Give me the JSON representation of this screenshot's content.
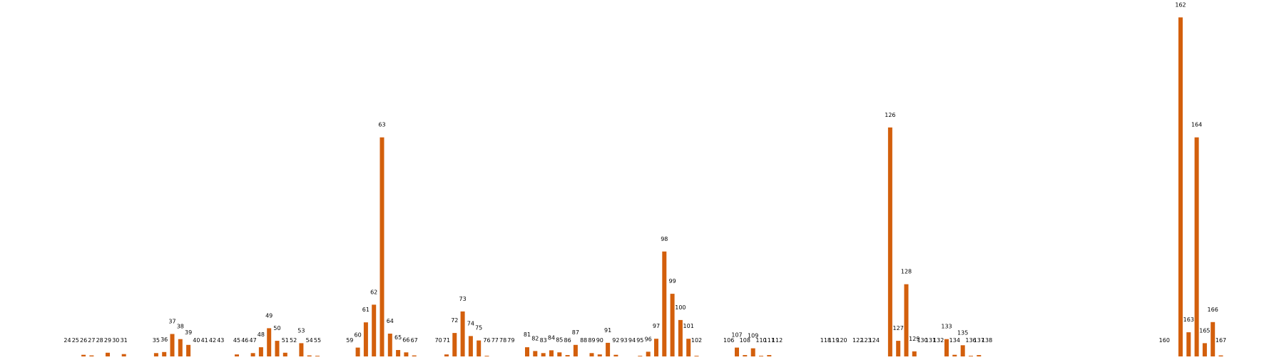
{
  "chart_data": {
    "type": "bar",
    "title": "",
    "xlabel": "",
    "ylabel": "",
    "axes_visible": false,
    "grid": false,
    "legend": "none",
    "bar_color": "#d35f0c",
    "ylim": [
      0,
      100
    ],
    "categories": [
      24,
      25,
      26,
      27,
      28,
      29,
      30,
      31,
      35,
      36,
      37,
      38,
      39,
      40,
      41,
      42,
      43,
      45,
      46,
      47,
      48,
      49,
      50,
      51,
      52,
      53,
      54,
      55,
      59,
      60,
      61,
      62,
      63,
      64,
      65,
      66,
      67,
      70,
      71,
      72,
      73,
      74,
      75,
      76,
      77,
      78,
      79,
      81,
      82,
      83,
      84,
      85,
      86,
      87,
      88,
      89,
      90,
      91,
      92,
      93,
      94,
      95,
      96,
      97,
      98,
      99,
      100,
      101,
      102,
      106,
      107,
      108,
      109,
      110,
      111,
      112,
      118,
      119,
      120,
      122,
      123,
      124,
      126,
      127,
      128,
      129,
      130,
      131,
      132,
      133,
      134,
      135,
      136,
      137,
      138,
      160,
      162,
      163,
      164,
      165,
      166,
      167
    ],
    "values": [
      0.2,
      0.2,
      0.7,
      0.5,
      0.2,
      1.3,
      0.2,
      0.9,
      1.2,
      1.5,
      6.8,
      5.3,
      3.6,
      0.2,
      0.2,
      0.2,
      0.2,
      0.8,
      0.2,
      1.2,
      2.9,
      8.5,
      4.8,
      1.3,
      0.2,
      4.1,
      0.5,
      0.4,
      0.2,
      2.8,
      10.2,
      15.4,
      64.5,
      6.9,
      2.1,
      1.4,
      0.5,
      0,
      0.8,
      7.1,
      13.4,
      6.2,
      4.9,
      0.4,
      0.2,
      0,
      0,
      2.9,
      1.8,
      1.2,
      2.0,
      1.4,
      0.6,
      3.6,
      0.2,
      1.2,
      0.8,
      4.2,
      0.7,
      0,
      0.2,
      0.4,
      1.6,
      5.4,
      31,
      18.6,
      10.9,
      5.4,
      0.4,
      0.2,
      2.8,
      0.6,
      2.6,
      0.4,
      0.6,
      0,
      0,
      0,
      0,
      0,
      0.2,
      0,
      67.4,
      4.8,
      21.4,
      1.7,
      0,
      0,
      0,
      5.3,
      0.7,
      3.5,
      0.4,
      0.6,
      0,
      0,
      99.7,
      7.3,
      64.5,
      4.1,
      10.3,
      0.5
    ],
    "data_labels": [
      "24",
      "25",
      "26",
      "27",
      "28",
      "29",
      "30",
      "31",
      "35",
      "36",
      "37",
      "38",
      "39",
      "40",
      "41",
      "42",
      "43",
      "45",
      "46",
      "47",
      "48",
      "49",
      "50",
      "51",
      "52",
      "53",
      "54",
      "55",
      "59",
      "60",
      "61",
      "62",
      "63",
      "64",
      "65",
      "66",
      "67",
      "70",
      "71",
      "72",
      "73",
      "74",
      "75",
      "76",
      "77",
      "78",
      "79",
      "81",
      "82",
      "83",
      "84",
      "85",
      "86",
      "87",
      "88",
      "89",
      "90",
      "91",
      "92",
      "93",
      "94",
      "95",
      "96",
      "97",
      "98",
      "99",
      "100",
      "101",
      "102",
      "106",
      "107",
      "108",
      "109",
      "110",
      "111",
      "112",
      "118",
      "119",
      "120",
      "122",
      "123",
      "124",
      "126",
      "127",
      "128",
      "129",
      "130",
      "131",
      "132",
      "133",
      "134",
      "135",
      "136",
      "137",
      "138",
      "160",
      "162",
      "163",
      "164",
      "165",
      "166",
      "167"
    ]
  }
}
